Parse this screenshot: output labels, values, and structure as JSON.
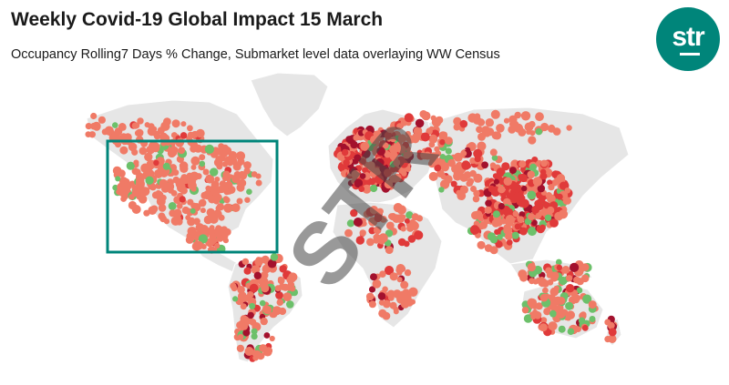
{
  "header": {
    "title": "Weekly Covid-19 Global Impact 15 March",
    "subtitle": "Occupancy Rolling7 Days % Change, Submarket level data overlaying WW Census"
  },
  "logo": {
    "text": "str"
  },
  "watermark": {
    "text": "STR"
  },
  "colors": {
    "land": "#e6e6e6",
    "land_border": "#ffffff",
    "decline_light": "#f07a66",
    "decline_mid": "#e03a3a",
    "decline_dark": "#a3112d",
    "increase": "#6cc06a",
    "highlight_box": "#00857a",
    "brand": "#00857a"
  },
  "map": {
    "highlight": "north-america",
    "legend_categories": [
      "decline_light",
      "decline_mid",
      "decline_dark",
      "increase"
    ]
  }
}
